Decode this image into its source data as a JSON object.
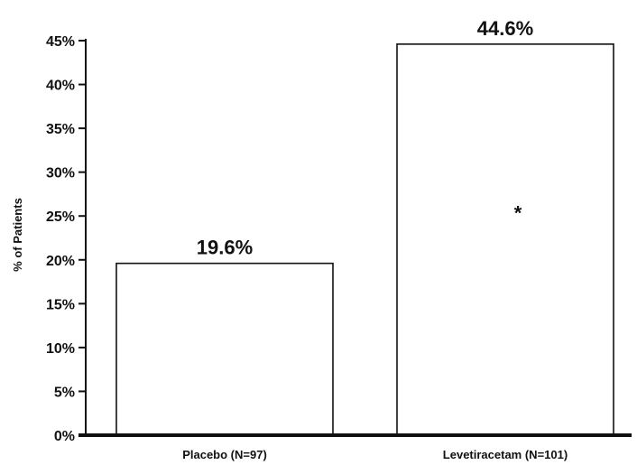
{
  "chart_data": {
    "type": "bar",
    "categories": [
      "Placebo (N=97)",
      "Levetiracetam (N=101)"
    ],
    "values": [
      19.6,
      44.6
    ],
    "data_labels": [
      "19.6%",
      "44.6%"
    ],
    "title": "",
    "xlabel": "",
    "ylabel": "% of Patients",
    "ylim": [
      0,
      45
    ],
    "yticks": [
      0,
      5,
      10,
      15,
      20,
      25,
      30,
      35,
      40,
      45
    ],
    "ytick_labels": [
      "0%",
      "5%",
      "10%",
      "15%",
      "20%",
      "25%",
      "30%",
      "35%",
      "40%",
      "45%"
    ],
    "grid": false,
    "legend": "none",
    "annotations": [
      {
        "category_index": 1,
        "text": "*"
      }
    ],
    "colors": {
      "bar_fill": "#ffffff",
      "bar_stroke": "#111111",
      "axis": "#111111"
    }
  }
}
